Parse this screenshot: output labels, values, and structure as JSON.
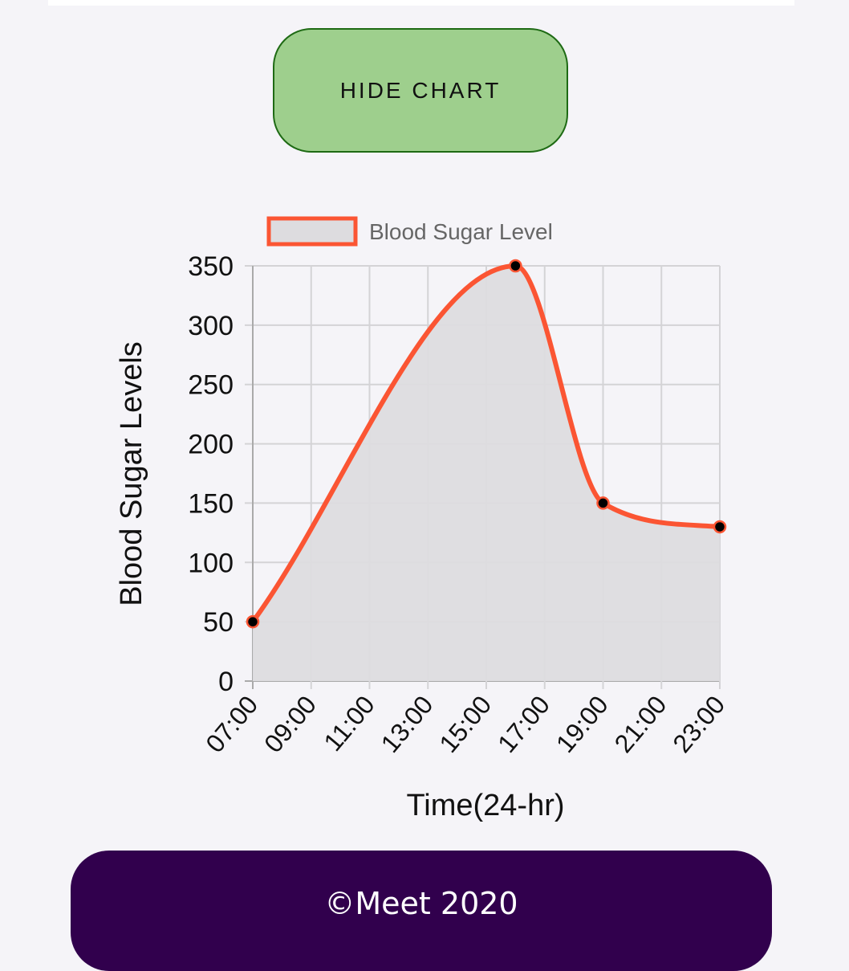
{
  "hide_chart_label": "HIDE CHART",
  "footer_text": "©Meet 2020",
  "colors": {
    "background": "#f5f4f8",
    "button_fill": "#9ecf8d",
    "button_border": "#1e6a14",
    "line": "#fb5533",
    "area_fill": "#dddcdf",
    "footer": "#31004d"
  },
  "chart_data": {
    "type": "line",
    "fill": true,
    "smooth": true,
    "x_categories": [
      "07:00",
      "09:00",
      "11:00",
      "13:00",
      "15:00",
      "17:00",
      "19:00",
      "21:00",
      "23:00"
    ],
    "series": [
      {
        "name": "Blood Sugar Level",
        "points": [
          {
            "x": "07:00",
            "y": 50
          },
          {
            "x": "16:00",
            "y": 350
          },
          {
            "x": "19:00",
            "y": 150
          },
          {
            "x": "23:00",
            "y": 130
          }
        ]
      }
    ],
    "xlabel": "Time(24-hr)",
    "ylabel": "Blood Sugar Levels",
    "ylim": [
      0,
      350
    ],
    "y_ticks": [
      0,
      50,
      100,
      150,
      200,
      250,
      300,
      350
    ],
    "grid": true,
    "legend": "top"
  }
}
